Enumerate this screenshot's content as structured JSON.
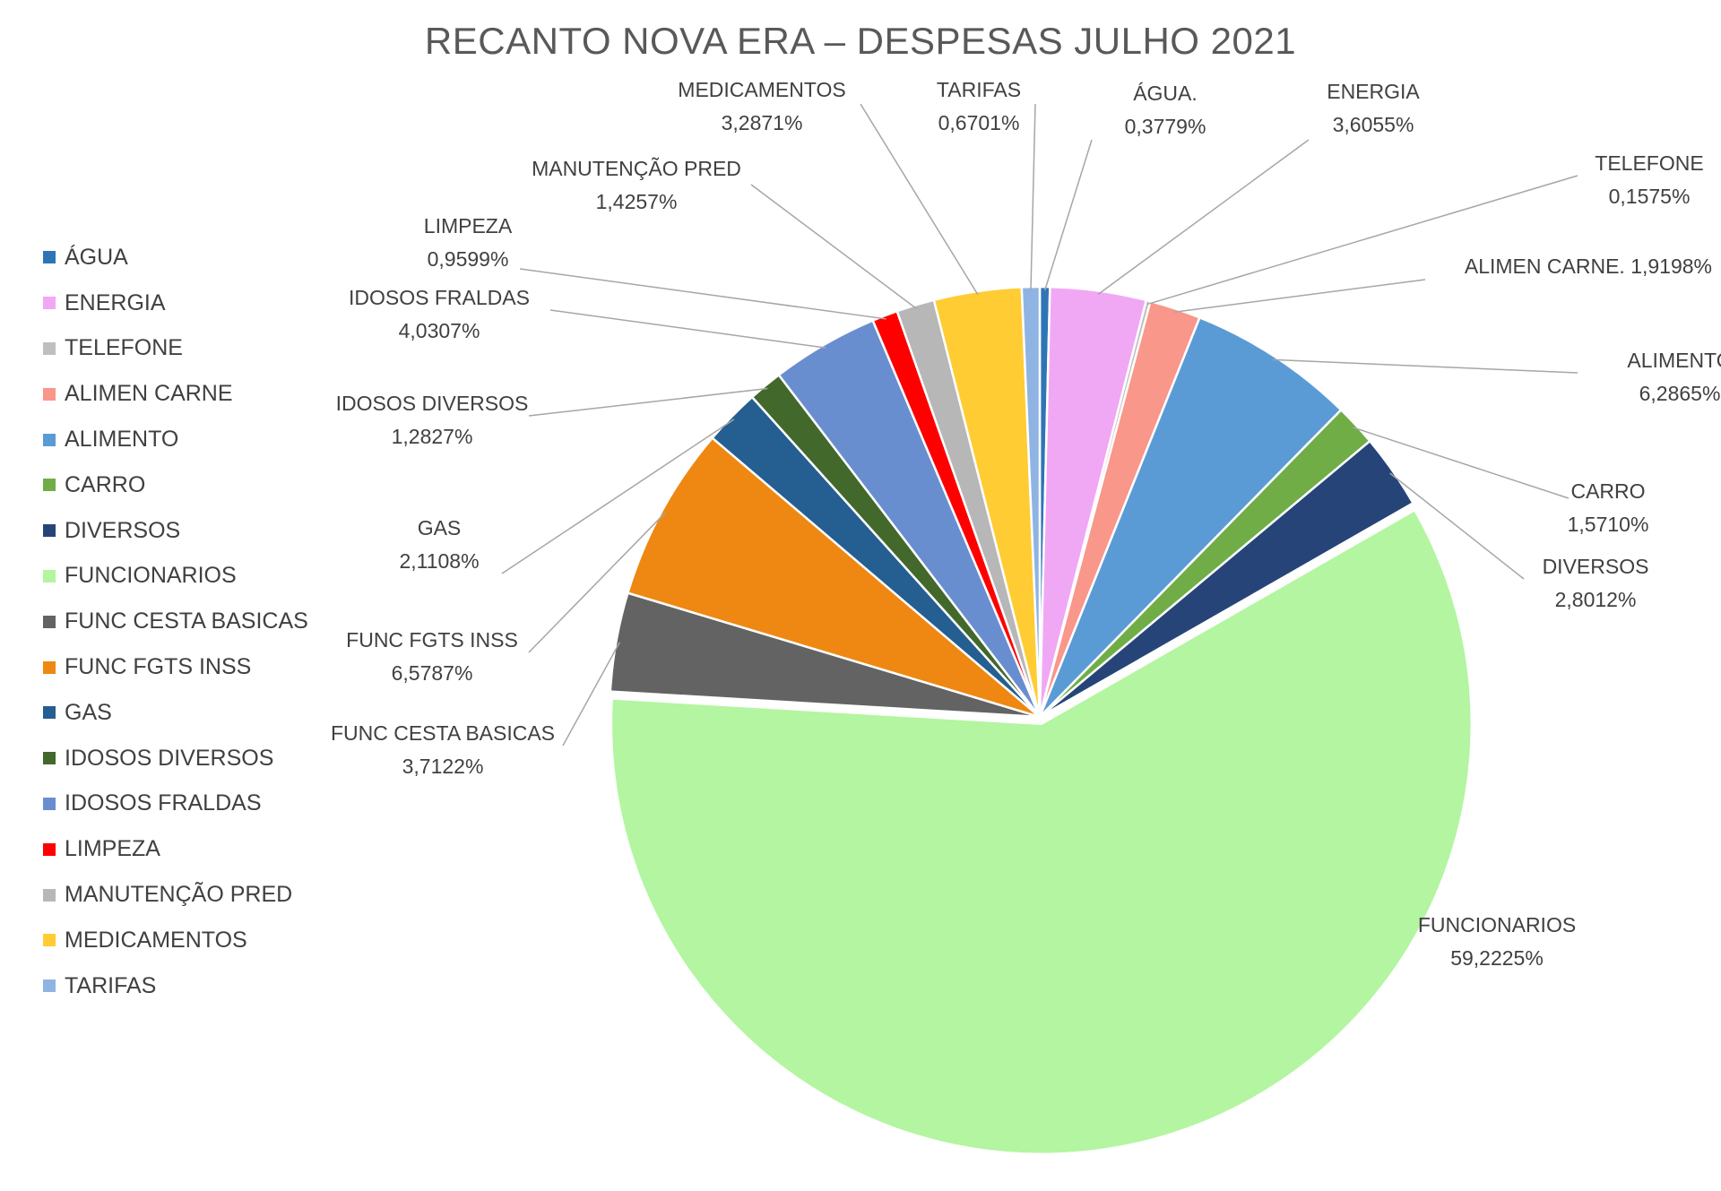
{
  "chart_data": {
    "type": "pie",
    "title": "RECANTO NOVA ERA – DESPESAS JULHO 2021",
    "legend_position": "left",
    "slices": [
      {
        "name": "ÁGUA",
        "value": 0.3779,
        "label_name": "ÁGUA.",
        "label_value": "0,3779%",
        "color": "#2E75B6"
      },
      {
        "name": "ENERGIA",
        "value": 3.6055,
        "label_name": "ENERGIA",
        "label_value": "3,6055%",
        "color": "#F0A8F5"
      },
      {
        "name": "TELEFONE",
        "value": 0.1575,
        "label_name": "TELEFONE",
        "label_value": "0,1575%",
        "color": "#BFBFBF"
      },
      {
        "name": "ALIMEN CARNE",
        "value": 1.9198,
        "label_name": "ALIMEN CARNE. 1,9198%",
        "label_value": "",
        "color": "#F8978A"
      },
      {
        "name": "ALIMENTO",
        "value": 6.2865,
        "label_name": "ALIMENTO",
        "label_value": "6,2865%",
        "color": "#5B9BD5"
      },
      {
        "name": "CARRO",
        "value": 1.571,
        "label_name": "CARRO",
        "label_value": "1,5710%",
        "color": "#70AD47"
      },
      {
        "name": "DIVERSOS",
        "value": 2.8012,
        "label_name": "DIVERSOS",
        "label_value": "2,8012%",
        "color": "#264478"
      },
      {
        "name": "FUNCIONARIOS",
        "value": 59.2225,
        "label_name": "FUNCIONARIOS",
        "label_value": "59,2225%",
        "color": "#B3F5A0"
      },
      {
        "name": "FUNC CESTA BASICAS",
        "value": 3.7122,
        "label_name": "FUNC CESTA BASICAS",
        "label_value": "3,7122%",
        "color": "#636363"
      },
      {
        "name": "FUNC FGTS INSS",
        "value": 6.5787,
        "label_name": "FUNC FGTS INSS",
        "label_value": "6,5787%",
        "color": "#EE8812"
      },
      {
        "name": "GAS",
        "value": 2.1108,
        "label_name": "GAS",
        "label_value": "2,1108%",
        "color": "#255E91"
      },
      {
        "name": "IDOSOS DIVERSOS",
        "value": 1.2827,
        "label_name": "IDOSOS DIVERSOS",
        "label_value": "1,2827%",
        "color": "#43682B"
      },
      {
        "name": "IDOSOS FRALDAS",
        "value": 4.0307,
        "label_name": "IDOSOS FRALDAS",
        "label_value": "4,0307%",
        "color": "#698ED0"
      },
      {
        "name": "LIMPEZA",
        "value": 0.9599,
        "label_name": "LIMPEZA",
        "label_value": "0,9599%",
        "color": "#FF0000"
      },
      {
        "name": "MANUTENÇÃO PRED",
        "value": 1.4257,
        "label_name": "MANUTENÇÃO PRED",
        "label_value": "1,4257%",
        "color": "#B7B7B7"
      },
      {
        "name": "MEDICAMENTOS",
        "value": 3.2871,
        "label_name": "MEDICAMENTOS",
        "label_value": "3,2871%",
        "color": "#FFCC33"
      },
      {
        "name": "TARIFAS",
        "value": 0.6701,
        "label_name": "TARIFAS",
        "label_value": "0,6701%",
        "color": "#8FB4E3"
      }
    ]
  }
}
